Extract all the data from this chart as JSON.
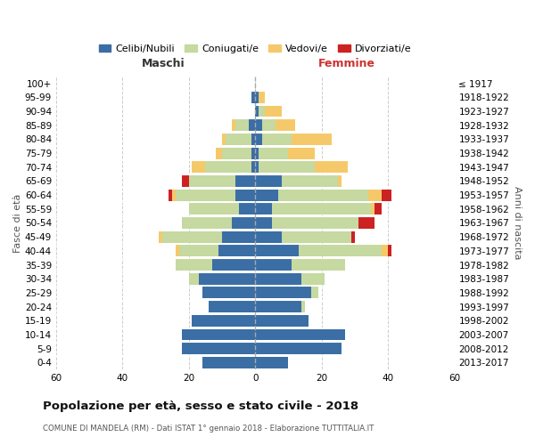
{
  "age_groups": [
    "0-4",
    "5-9",
    "10-14",
    "15-19",
    "20-24",
    "25-29",
    "30-34",
    "35-39",
    "40-44",
    "45-49",
    "50-54",
    "55-59",
    "60-64",
    "65-69",
    "70-74",
    "75-79",
    "80-84",
    "85-89",
    "90-94",
    "95-99",
    "100+"
  ],
  "birth_years": [
    "2013-2017",
    "2008-2012",
    "2003-2007",
    "1998-2002",
    "1993-1997",
    "1988-1992",
    "1983-1987",
    "1978-1982",
    "1973-1977",
    "1968-1972",
    "1963-1967",
    "1958-1962",
    "1953-1957",
    "1948-1952",
    "1943-1947",
    "1938-1942",
    "1933-1937",
    "1928-1932",
    "1923-1927",
    "1918-1922",
    "≤ 1917"
  ],
  "male_celibi": [
    16,
    22,
    22,
    19,
    14,
    16,
    17,
    13,
    11,
    10,
    7,
    5,
    6,
    6,
    1,
    1,
    1,
    2,
    0,
    1,
    0
  ],
  "male_coniugati": [
    0,
    0,
    0,
    0,
    0,
    0,
    3,
    11,
    12,
    18,
    15,
    15,
    18,
    14,
    14,
    9,
    8,
    4,
    0,
    0,
    0
  ],
  "male_vedovi": [
    0,
    0,
    0,
    0,
    0,
    0,
    0,
    0,
    1,
    1,
    0,
    0,
    1,
    0,
    4,
    2,
    1,
    1,
    0,
    0,
    0
  ],
  "male_divorziati": [
    0,
    0,
    0,
    0,
    0,
    0,
    0,
    0,
    0,
    0,
    0,
    0,
    1,
    2,
    0,
    0,
    0,
    0,
    0,
    0,
    0
  ],
  "female_celibi": [
    10,
    26,
    27,
    16,
    14,
    17,
    14,
    11,
    13,
    8,
    5,
    5,
    7,
    8,
    1,
    1,
    2,
    2,
    1,
    1,
    0
  ],
  "female_coniugati": [
    0,
    0,
    0,
    0,
    1,
    2,
    7,
    16,
    25,
    21,
    26,
    30,
    27,
    17,
    17,
    9,
    9,
    4,
    2,
    0,
    0
  ],
  "female_vedovi": [
    0,
    0,
    0,
    0,
    0,
    0,
    0,
    0,
    2,
    0,
    0,
    1,
    4,
    1,
    10,
    8,
    12,
    6,
    5,
    2,
    0
  ],
  "female_divorziati": [
    0,
    0,
    0,
    0,
    0,
    0,
    0,
    0,
    1,
    1,
    5,
    2,
    3,
    0,
    0,
    0,
    0,
    0,
    0,
    0,
    0
  ],
  "color_celibi": "#3a6ea5",
  "color_coniugati": "#c5d9a0",
  "color_vedovi": "#f5c96a",
  "color_divorziati": "#cc2222",
  "xlim": 60,
  "title": "Popolazione per età, sesso e stato civile - 2018",
  "subtitle": "COMUNE DI MANDELA (RM) - Dati ISTAT 1° gennaio 2018 - Elaborazione TUTTITALIA.IT",
  "ylabel_left": "Fasce di età",
  "ylabel_right": "Anni di nascita",
  "label_maschi": "Maschi",
  "label_femmine": "Femmine",
  "legend_labels": [
    "Celibi/Nubili",
    "Coniugati/e",
    "Vedovi/e",
    "Divorziati/e"
  ],
  "bg_color": "#ffffff",
  "grid_color": "#cccccc"
}
